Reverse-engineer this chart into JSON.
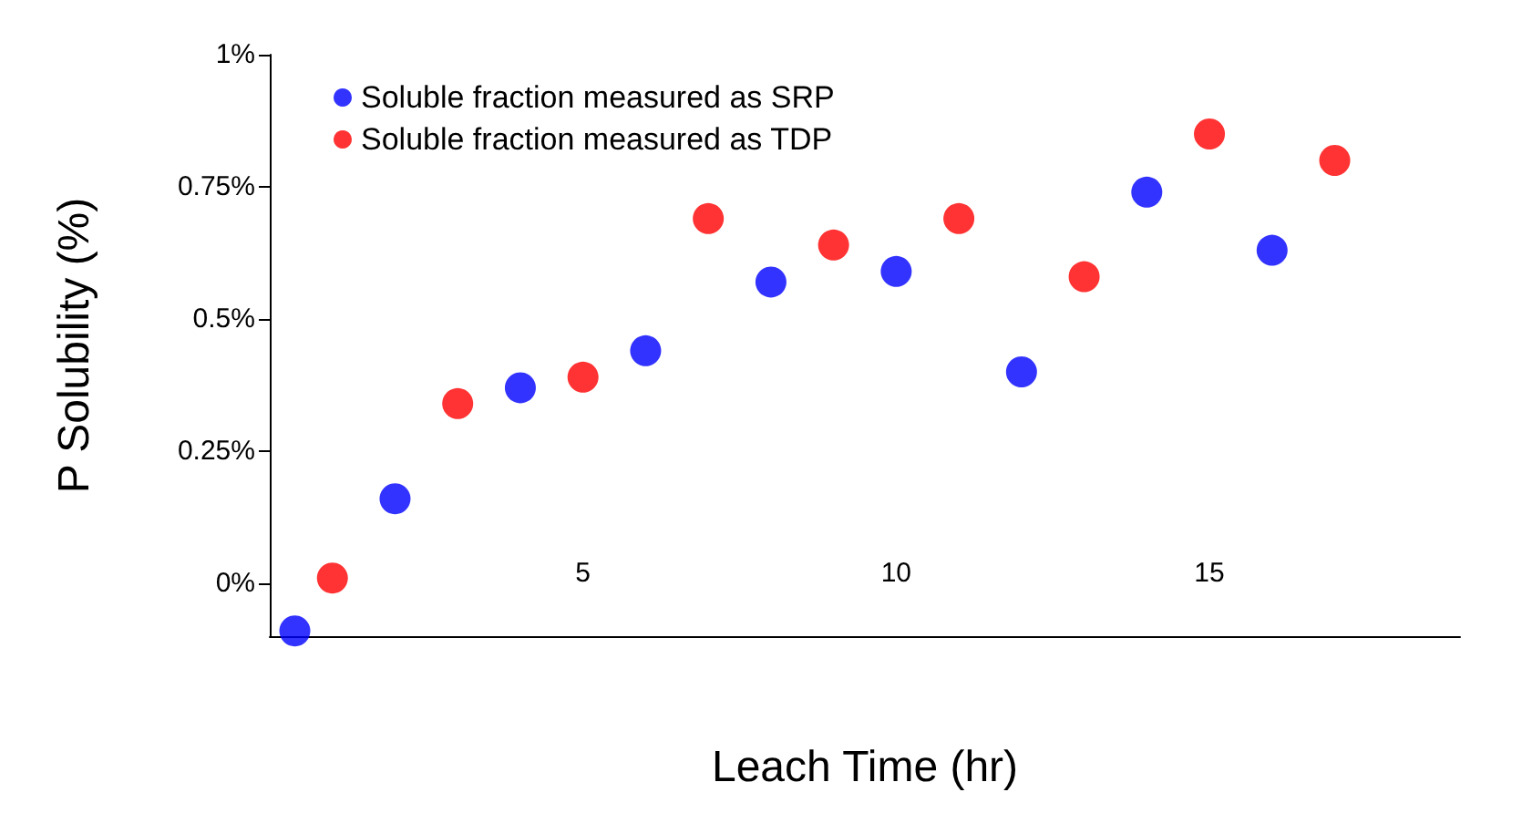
{
  "chart_data": {
    "type": "scatter",
    "xlabel": "Leach Time (hr)",
    "ylabel": "P Solubility (%)",
    "series": [
      {
        "name": "Soluble fraction measured as SRP",
        "color": "#0000ff",
        "x": [
          0.4,
          2,
          4,
          6,
          8,
          10,
          12,
          14,
          16
        ],
        "values": [
          -0.09,
          0.16,
          0.37,
          0.44,
          0.57,
          0.59,
          0.4,
          0.74,
          0.63
        ]
      },
      {
        "name": "Soluble fraction measured as TDP",
        "color": "#ff0000",
        "x": [
          1,
          3,
          5,
          7,
          9,
          11,
          13,
          15,
          17
        ],
        "values": [
          0.01,
          0.34,
          0.39,
          0.69,
          0.64,
          0.69,
          0.58,
          0.85,
          0.8
        ]
      }
    ],
    "xlim": [
      0,
      19
    ],
    "xticks": [
      5,
      10,
      15
    ],
    "ylim": [
      -0.1,
      1
    ],
    "yticks": [
      {
        "value": 0,
        "label": "0%"
      },
      {
        "value": 0.25,
        "label": "0.25%"
      },
      {
        "value": 0.5,
        "label": "0.5%"
      },
      {
        "value": 0.75,
        "label": "0.75%"
      },
      {
        "value": 1,
        "label": "1%"
      }
    ],
    "grid": false,
    "legend": "top left",
    "marker": "circle"
  }
}
